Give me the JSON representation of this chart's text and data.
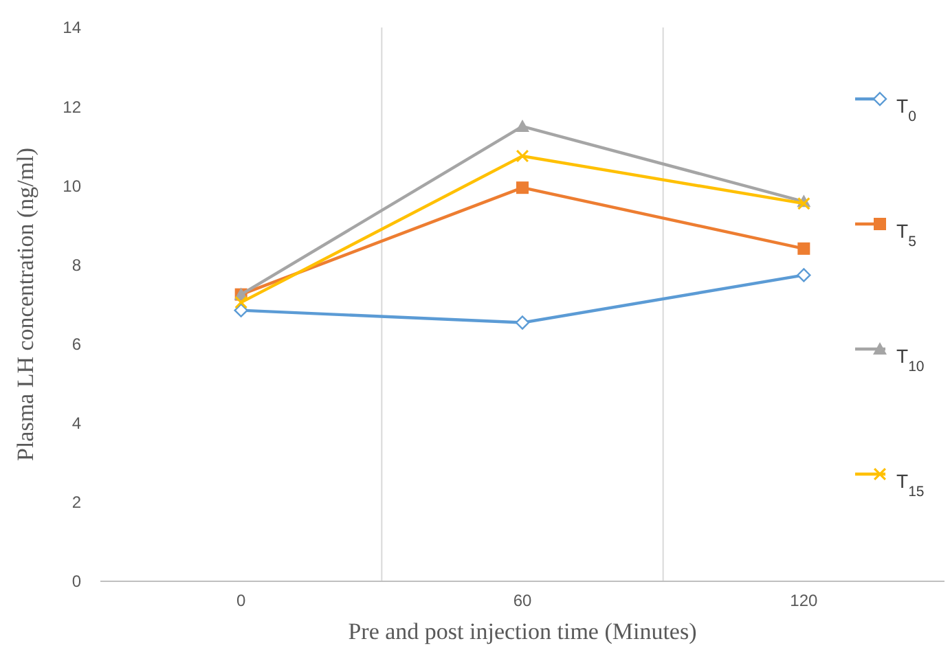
{
  "chart_data": {
    "type": "line",
    "xlabel": "Pre and post injection time (Minutes)",
    "ylabel": "Plasma LH concentration (ng/ml)",
    "categories": [
      "0",
      "60",
      "120"
    ],
    "ylim": [
      0,
      14
    ],
    "yticks": [
      0,
      2,
      4,
      6,
      8,
      10,
      12,
      14
    ],
    "grid": "x",
    "legend": "right",
    "series": [
      {
        "name": "T$_{0}$",
        "color": "#5b9bd5",
        "marker": "diamond",
        "values": [
          6.85,
          6.54,
          7.74
        ]
      },
      {
        "name": "T$_{5}$",
        "color": "#ed7d31",
        "marker": "square",
        "values": [
          7.25,
          9.95,
          8.41
        ]
      },
      {
        "name": "T$_{10}$",
        "color": "#a5a5a5",
        "marker": "triangle",
        "values": [
          7.25,
          11.5,
          9.6
        ]
      },
      {
        "name": "T$_{15}$",
        "color": "#ffc000",
        "marker": "cross",
        "values": [
          7.05,
          10.75,
          9.55
        ]
      }
    ]
  }
}
